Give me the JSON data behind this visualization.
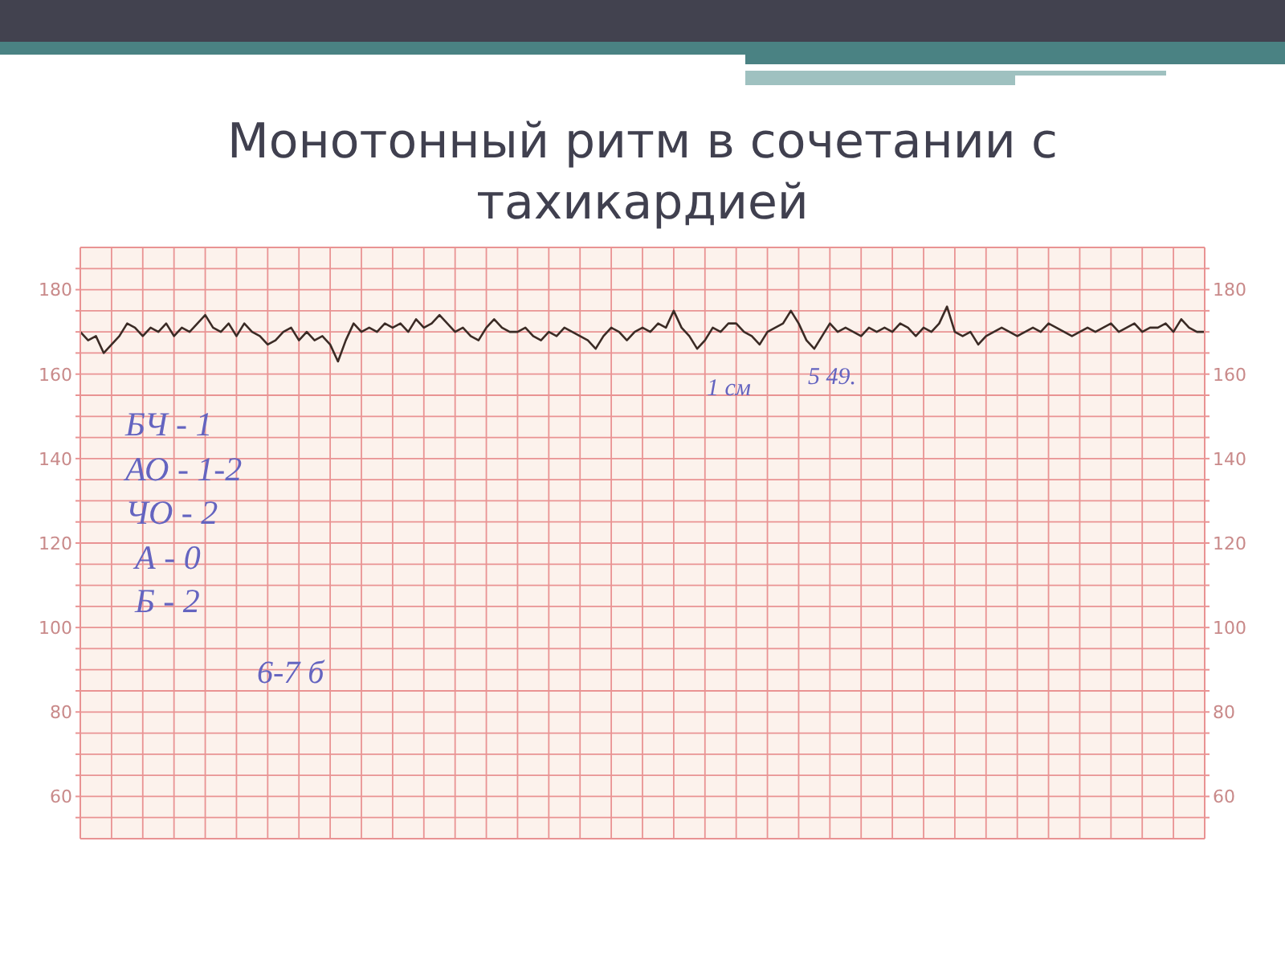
{
  "chart_data": {
    "type": "line",
    "title": "Монотонный ритм в сочетании с тахикардией",
    "categories": [
      null,
      null,
      null,
      null,
      null,
      null,
      null,
      null,
      null,
      null,
      null,
      null,
      null,
      null,
      null,
      null,
      null,
      null,
      null,
      null,
      null,
      null,
      null,
      null,
      null,
      null,
      null,
      null,
      null,
      null,
      null,
      null,
      null,
      null,
      null,
      null,
      null,
      null,
      null,
      null,
      null,
      null,
      null,
      null,
      null,
      null,
      null,
      null,
      null,
      null,
      null,
      null,
      null,
      null,
      null,
      null,
      null,
      null,
      null,
      null,
      null,
      null,
      null,
      null,
      null,
      null,
      null,
      null,
      null,
      null,
      null,
      null,
      null,
      null,
      null,
      null,
      null,
      null,
      null,
      null,
      null,
      null,
      null,
      null,
      null,
      null,
      null,
      null,
      null,
      null,
      null,
      null,
      null,
      null,
      null,
      null,
      null,
      null,
      null,
      null,
      null,
      null,
      null,
      null,
      null,
      null,
      null,
      null,
      null,
      null,
      null,
      null,
      null,
      null,
      null,
      null,
      null,
      null,
      null,
      null,
      null,
      null,
      null,
      null,
      null,
      null,
      null,
      null,
      null,
      null,
      null,
      null,
      null,
      null,
      null,
      null,
      null,
      null,
      null,
      null,
      null,
      null,
      null,
      null,
      null
    ],
    "series": [
      {
        "color": "#3b2b25",
        "values": [
          170,
          168,
          169,
          165,
          167,
          169,
          172,
          171,
          169,
          171,
          170,
          172,
          169,
          171,
          170,
          172,
          174,
          171,
          170,
          172,
          169,
          172,
          170,
          169,
          167,
          168,
          170,
          171,
          168,
          170,
          168,
          169,
          167,
          163,
          168,
          172,
          170,
          171,
          170,
          172,
          171,
          172,
          170,
          173,
          171,
          172,
          174,
          172,
          170,
          171,
          169,
          168,
          171,
          173,
          171,
          170,
          170,
          171,
          169,
          168,
          170,
          169,
          171,
          170,
          169,
          168,
          166,
          169,
          171,
          170,
          168,
          170,
          171,
          170,
          172,
          171,
          175,
          171,
          169,
          166,
          168,
          171,
          170,
          172,
          172,
          170,
          169,
          167,
          170,
          171,
          172,
          175,
          172,
          168,
          166,
          169,
          172,
          170,
          171,
          170,
          169,
          171,
          170,
          171,
          170,
          172,
          171,
          169,
          171,
          170,
          172,
          176,
          170,
          169,
          170,
          167,
          169,
          170,
          171,
          170,
          169,
          170,
          171,
          170,
          172,
          171,
          170,
          169,
          170,
          171,
          170,
          171,
          172,
          170,
          171,
          172,
          170,
          171,
          171,
          172,
          170,
          173,
          171,
          170,
          170
        ]
      }
    ],
    "ylim": [
      50,
      190
    ],
    "yticks": [
      {
        "value": 55,
        "label": null
      },
      60,
      {
        "value": 65,
        "label": null
      },
      {
        "value": 70,
        "label": null
      },
      {
        "value": 75,
        "label": null
      },
      80,
      {
        "value": 85,
        "label": null
      },
      {
        "value": 90,
        "label": null
      },
      {
        "value": 95,
        "label": null
      },
      100,
      {
        "value": 105,
        "label": null
      },
      {
        "value": 110,
        "label": null
      },
      {
        "value": 115,
        "label": null
      },
      120,
      {
        "value": 125,
        "label": null
      },
      {
        "value": 130,
        "label": null
      },
      {
        "value": 135,
        "label": null
      },
      140,
      {
        "value": 145,
        "label": null
      },
      {
        "value": 150,
        "label": null
      },
      {
        "value": 155,
        "label": null
      },
      160,
      {
        "value": 165,
        "label": null
      },
      {
        "value": 170,
        "label": null
      },
      {
        "value": 175,
        "label": null
      },
      180,
      {
        "value": 185,
        "label": null
      }
    ],
    "y2lim": [
      50,
      190
    ],
    "y2ticks": [
      {
        "value": 55,
        "label": null
      },
      60,
      {
        "value": 65,
        "label": null
      },
      {
        "value": 70,
        "label": null
      },
      {
        "value": 75,
        "label": null
      },
      80,
      {
        "value": 85,
        "label": null
      },
      {
        "value": 90,
        "label": null
      },
      {
        "value": 95,
        "label": null
      },
      100,
      {
        "value": 105,
        "label": null
      },
      {
        "value": 110,
        "label": null
      },
      {
        "value": 115,
        "label": null
      },
      120,
      {
        "value": 125,
        "label": null
      },
      {
        "value": 130,
        "label": null
      },
      {
        "value": 135,
        "label": null
      },
      140,
      {
        "value": 145,
        "label": null
      },
      {
        "value": 150,
        "label": null
      },
      {
        "value": 155,
        "label": null
      },
      160,
      {
        "value": 165,
        "label": null
      },
      {
        "value": 170,
        "label": null
      },
      {
        "value": 175,
        "label": null
      },
      180,
      {
        "value": 185,
        "label": null
      }
    ],
    "grid": true,
    "annotations": [
      "БЧ - 1",
      "АО - 1-2",
      "ЧО - 2",
      "А - 0",
      "Б - 2",
      "6-7 б",
      "1 см",
      "5 49."
    ]
  }
}
